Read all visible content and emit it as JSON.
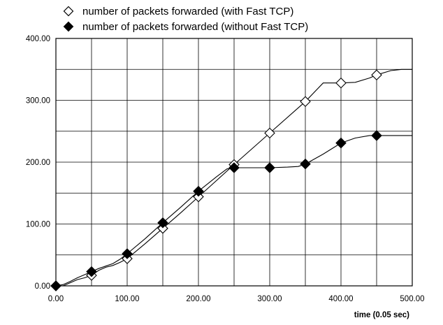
{
  "chart_data": {
    "type": "line",
    "title": "",
    "xlabel": "time (0.05 sec)",
    "ylabel": "",
    "xlim": [
      0,
      500
    ],
    "ylim": [
      0,
      400
    ],
    "x_ticks": [
      0,
      100,
      200,
      300,
      400,
      500
    ],
    "y_ticks": [
      0,
      100,
      200,
      300,
      400
    ],
    "x_tick_labels": [
      "0.00",
      "100.00",
      "200.00",
      "300.00",
      "400.00",
      "500.00"
    ],
    "y_tick_labels": [
      "0.00",
      "100.00",
      "200.00",
      "300.00",
      "400.00"
    ],
    "grid": true,
    "grid_step_x": 50,
    "grid_step_y": 50,
    "legend_position": "top",
    "series": [
      {
        "name": "number of packets forwarded (with Fast TCP)",
        "marker": "hollow-diamond",
        "color": "#000000",
        "line": [
          [
            0,
            0
          ],
          [
            10,
            0
          ],
          [
            20,
            5
          ],
          [
            30,
            10
          ],
          [
            40,
            13
          ],
          [
            50,
            17
          ],
          [
            60,
            25
          ],
          [
            70,
            30
          ],
          [
            80,
            33
          ],
          [
            90,
            38
          ],
          [
            100,
            44
          ],
          [
            125,
            68
          ],
          [
            150,
            93
          ],
          [
            175,
            118
          ],
          [
            200,
            144
          ],
          [
            225,
            170
          ],
          [
            250,
            196
          ],
          [
            300,
            247
          ],
          [
            350,
            298
          ],
          [
            375,
            328
          ],
          [
            400,
            328
          ],
          [
            420,
            329
          ],
          [
            440,
            336
          ],
          [
            450,
            341
          ],
          [
            470,
            348
          ],
          [
            485,
            350
          ],
          [
            500,
            350
          ]
        ],
        "markers": [
          [
            0,
            0
          ],
          [
            50,
            17
          ],
          [
            100,
            44
          ],
          [
            150,
            93
          ],
          [
            200,
            144
          ],
          [
            250,
            196
          ],
          [
            300,
            247
          ],
          [
            350,
            298
          ],
          [
            400,
            328
          ],
          [
            450,
            341
          ]
        ]
      },
      {
        "name": "number of packets forwarded (without Fast TCP)",
        "marker": "filled-diamond",
        "color": "#000000",
        "line": [
          [
            0,
            0
          ],
          [
            10,
            2
          ],
          [
            20,
            7
          ],
          [
            30,
            13
          ],
          [
            40,
            18
          ],
          [
            50,
            23
          ],
          [
            60,
            28
          ],
          [
            70,
            32
          ],
          [
            80,
            36
          ],
          [
            90,
            43
          ],
          [
            100,
            52
          ],
          [
            125,
            76
          ],
          [
            150,
            102
          ],
          [
            175,
            127
          ],
          [
            200,
            153
          ],
          [
            225,
            176
          ],
          [
            240,
            189
          ],
          [
            250,
            191
          ],
          [
            275,
            191
          ],
          [
            300,
            191
          ],
          [
            325,
            192
          ],
          [
            340,
            193
          ],
          [
            350,
            197
          ],
          [
            375,
            213
          ],
          [
            400,
            231
          ],
          [
            420,
            239
          ],
          [
            440,
            243
          ],
          [
            450,
            243
          ],
          [
            470,
            243
          ],
          [
            500,
            243
          ]
        ],
        "markers": [
          [
            0,
            0
          ],
          [
            50,
            23
          ],
          [
            100,
            52
          ],
          [
            150,
            102
          ],
          [
            200,
            153
          ],
          [
            250,
            191
          ],
          [
            300,
            191
          ],
          [
            350,
            197
          ],
          [
            400,
            231
          ],
          [
            450,
            243
          ]
        ]
      }
    ]
  }
}
